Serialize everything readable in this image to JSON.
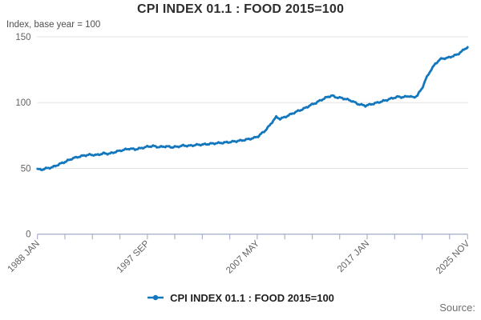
{
  "header": {
    "title": "CPI INDEX 01.1 : FOOD 2015=100",
    "subtitle": "Index, base year = 100"
  },
  "legend": {
    "label": "CPI INDEX 01.1 : FOOD 2015=100"
  },
  "footer": {
    "source_label": "Source:"
  },
  "colors": {
    "series_blue": "#1377bd",
    "gridline": "#e3e3e3",
    "axis": "#a9b4ca",
    "tick_text": "#636363",
    "title_text": "#2d2d2d"
  },
  "chart_data": {
    "type": "line",
    "title": "CPI INDEX 01.1 : FOOD 2015=100",
    "subtitle": "Index, base year = 100",
    "xlabel": "",
    "ylabel": "Index, base year = 100",
    "ylim": [
      0,
      150
    ],
    "y_ticks": [
      0,
      50,
      100,
      150
    ],
    "grid": "horizontal",
    "legend_position": "bottom",
    "x_range": {
      "start": "1988 JAN",
      "end": "2025 NOV"
    },
    "total_months": 454,
    "minor_tick_every_months": 29,
    "x_tick_labels": [
      {
        "label": "1988 JAN",
        "month": 0
      },
      {
        "label": "1997 SEP",
        "month": 116
      },
      {
        "label": "2007 MAY",
        "month": 232
      },
      {
        "label": "2017 JAN",
        "month": 348
      },
      {
        "label": "2025 NOV",
        "month": 454
      }
    ],
    "series": [
      {
        "name": "CPI INDEX 01.1 : FOOD 2015=100",
        "color": "#1377bd",
        "anchors_month_value": [
          [
            0,
            49.4
          ],
          [
            4,
            49.0
          ],
          [
            8,
            49.8
          ],
          [
            16,
            50.9
          ],
          [
            23,
            53.2
          ],
          [
            30,
            55.2
          ],
          [
            37,
            57.6
          ],
          [
            44,
            58.9
          ],
          [
            50,
            59.9
          ],
          [
            56,
            60.4
          ],
          [
            62,
            60.1
          ],
          [
            70,
            61.4
          ],
          [
            76,
            61.1
          ],
          [
            83,
            62.7
          ],
          [
            90,
            63.9
          ],
          [
            97,
            65.0
          ],
          [
            103,
            64.5
          ],
          [
            109,
            65.3
          ],
          [
            116,
            66.5
          ],
          [
            122,
            67.0
          ],
          [
            128,
            66.2
          ],
          [
            136,
            66.7
          ],
          [
            142,
            66.1
          ],
          [
            148,
            66.5
          ],
          [
            154,
            67.4
          ],
          [
            160,
            67.1
          ],
          [
            167,
            67.8
          ],
          [
            174,
            68.1
          ],
          [
            181,
            68.6
          ],
          [
            188,
            69.1
          ],
          [
            196,
            69.5
          ],
          [
            203,
            70.0
          ],
          [
            210,
            70.7
          ],
          [
            217,
            71.4
          ],
          [
            224,
            72.4
          ],
          [
            229,
            73.2
          ],
          [
            233,
            74.4
          ],
          [
            240,
            78.5
          ],
          [
            245,
            82.5
          ],
          [
            249,
            86.5
          ],
          [
            252,
            89.0
          ],
          [
            256,
            87.7
          ],
          [
            260,
            88.6
          ],
          [
            265,
            90.3
          ],
          [
            274,
            93.3
          ],
          [
            280,
            95.0
          ],
          [
            283,
            96.0
          ],
          [
            288,
            98.0
          ],
          [
            293,
            99.5
          ],
          [
            299,
            101.8
          ],
          [
            304,
            103.6
          ],
          [
            311,
            105.4
          ],
          [
            314,
            104.2
          ],
          [
            320,
            103.6
          ],
          [
            325,
            102.8
          ],
          [
            332,
            101.2
          ],
          [
            338,
            99.0
          ],
          [
            346,
            97.6
          ],
          [
            352,
            98.7
          ],
          [
            359,
            100.0
          ],
          [
            366,
            101.4
          ],
          [
            373,
            103.0
          ],
          [
            380,
            104.4
          ],
          [
            386,
            104.1
          ],
          [
            392,
            105.0
          ],
          [
            397,
            103.8
          ],
          [
            401,
            105.5
          ],
          [
            406,
            111.0
          ],
          [
            410,
            118.0
          ],
          [
            415,
            124.5
          ],
          [
            420,
            129.5
          ],
          [
            424,
            132.3
          ],
          [
            427,
            133.5
          ],
          [
            432,
            133.8
          ],
          [
            437,
            135.0
          ],
          [
            443,
            136.5
          ],
          [
            448,
            139.0
          ],
          [
            451,
            140.8
          ],
          [
            454,
            142.2
          ]
        ]
      }
    ]
  }
}
